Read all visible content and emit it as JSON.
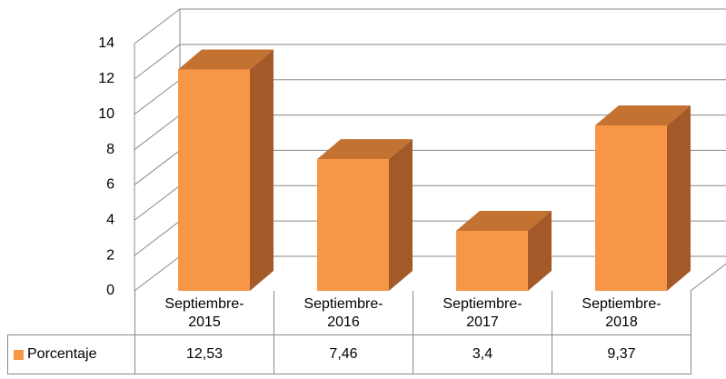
{
  "chart_data": {
    "type": "bar3d",
    "categories": [
      "Septiembre-2015",
      "Septiembre-2016",
      "Septiembre-2017",
      "Septiembre-2018"
    ],
    "series": [
      {
        "name": "Porcentaje",
        "color": "#f79646",
        "values": [
          12.53,
          7.46,
          3.4,
          9.37
        ],
        "value_labels": [
          "12,53",
          "7,46",
          "3,4",
          "9,37"
        ]
      }
    ],
    "ylim": [
      0,
      14
    ],
    "yticks": [
      0,
      2,
      4,
      6,
      8,
      10,
      12,
      14
    ],
    "grid": true,
    "data_table": true
  }
}
